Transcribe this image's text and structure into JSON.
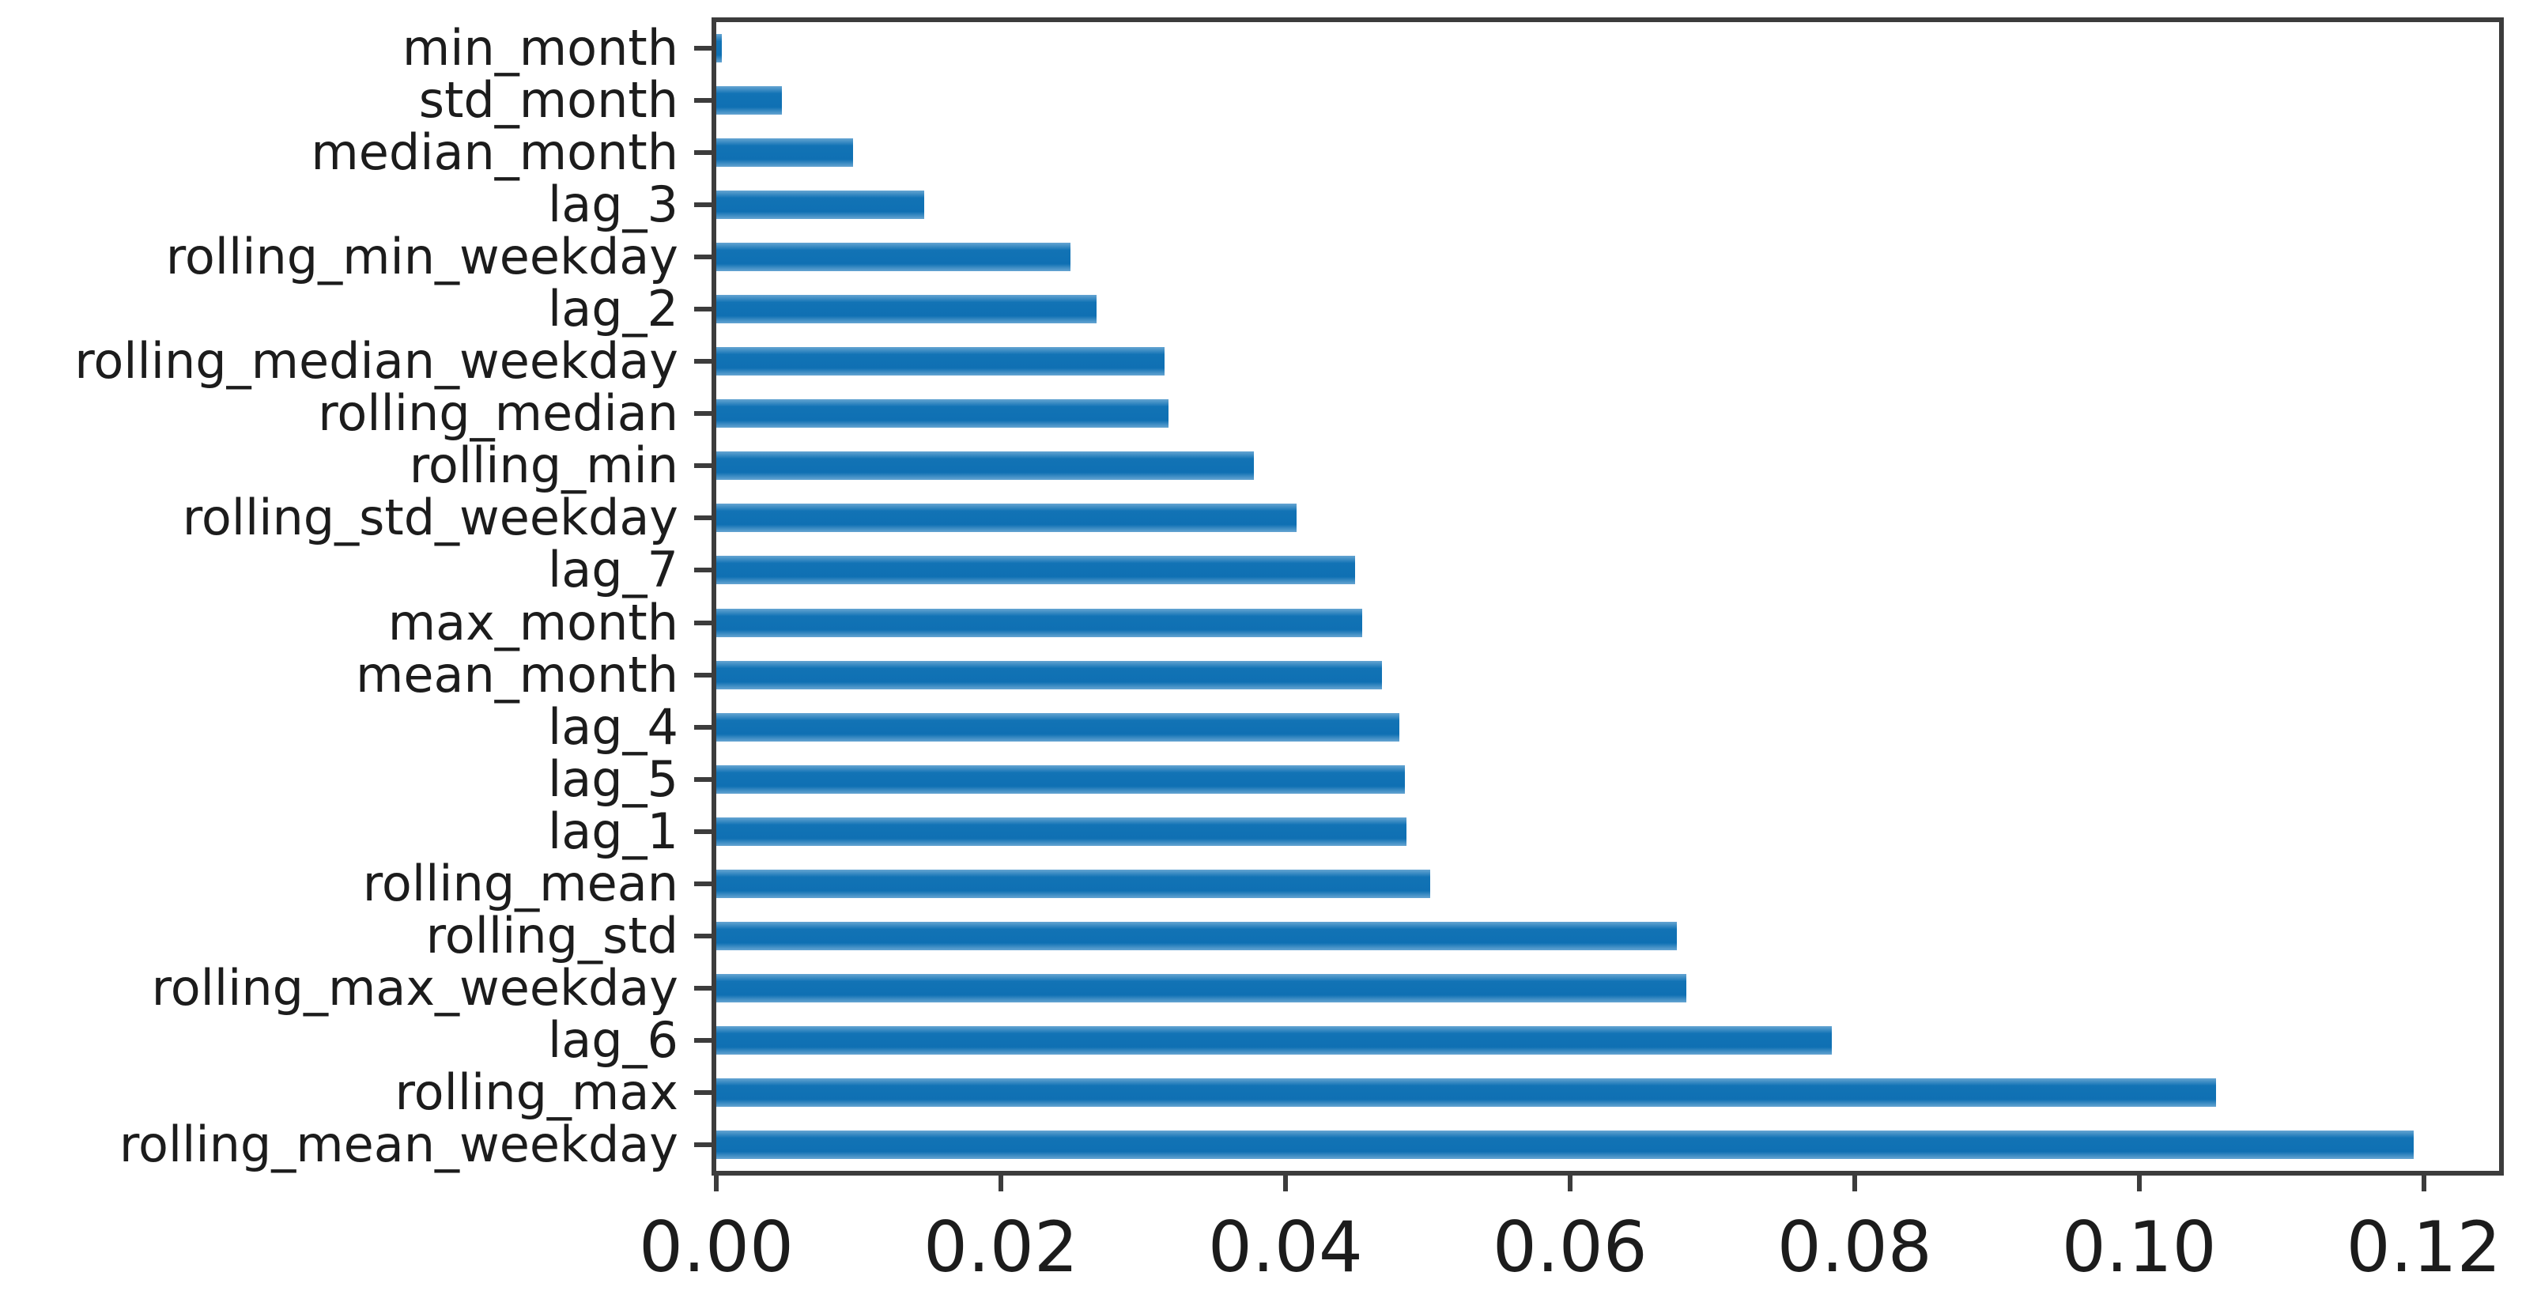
{
  "chart_data": {
    "type": "bar",
    "orientation": "horizontal",
    "title": "",
    "xlabel": "",
    "ylabel": "",
    "categories_top_to_bottom": [
      "min_month",
      "std_month",
      "median_month",
      "lag_3",
      "rolling_min_weekday",
      "lag_2",
      "rolling_median_weekday",
      "rolling_median",
      "rolling_min",
      "rolling_std_weekday",
      "lag_7",
      "max_month",
      "mean_month",
      "lag_4",
      "lag_5",
      "lag_1",
      "rolling_mean",
      "rolling_std",
      "rolling_max_weekday",
      "lag_6",
      "rolling_max",
      "rolling_mean_weekday"
    ],
    "values": [
      0.0004,
      0.0046,
      0.0096,
      0.0146,
      0.0249,
      0.0267,
      0.0315,
      0.0318,
      0.0378,
      0.0408,
      0.0449,
      0.0454,
      0.0468,
      0.048,
      0.0484,
      0.0485,
      0.0502,
      0.0675,
      0.0682,
      0.0784,
      0.1054,
      0.1193
    ],
    "xlim": [
      0,
      0.1253
    ],
    "xticks": [
      "0.00",
      "0.02",
      "0.04",
      "0.06",
      "0.08",
      "0.10",
      "0.12"
    ],
    "xtick_values": [
      0.0,
      0.02,
      0.04,
      0.06,
      0.08,
      0.1,
      0.12
    ],
    "grid": false,
    "legend": null,
    "bar_color": "#1273b5",
    "axis_color": "#3c3c3c",
    "text_color": "#1c1c1c",
    "background_color": "#ffffff"
  }
}
